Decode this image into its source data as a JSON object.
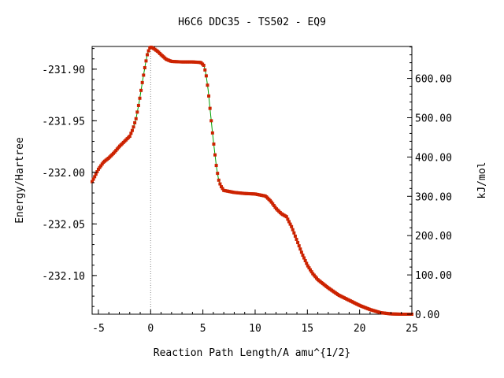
{
  "chart_data": {
    "type": "line",
    "title": "H6C6   DDC35 - TS502 - EQ9",
    "xlabel": "Reaction Path Length/A amu^{1/2}",
    "ylabel": "Energy/Hartree",
    "y2label": "kJ/mol",
    "xlim": [
      -5.6,
      25
    ],
    "ylim": [
      -232.1375,
      -231.878
    ],
    "y2lim": [
      0,
      681.3
    ],
    "x_ticks": [
      "-5",
      "0",
      "5",
      "10",
      "15",
      "20",
      "25"
    ],
    "y_ticks": [
      "-231.90",
      "-231.95",
      "-232.00",
      "-232.05",
      "-232.10"
    ],
    "y2_ticks": [
      "600.00",
      "500.00",
      "400.00",
      "300.00",
      "200.00",
      "100.00",
      "0.00"
    ],
    "ts_marker_x": 0,
    "series": [
      {
        "line_color": "#00a000",
        "marker_color": "#cc2200",
        "x": [
          -5.6,
          -5.0,
          -4.5,
          -4.0,
          -3.5,
          -3.0,
          -2.5,
          -2.0,
          -1.7,
          -1.4,
          -1.1,
          -0.8,
          -0.5,
          -0.3,
          -0.1,
          0.0,
          0.3,
          0.7,
          1.0,
          1.5,
          2.0,
          3.0,
          4.0,
          4.8,
          5.1,
          5.3,
          5.5,
          5.7,
          5.9,
          6.1,
          6.3,
          6.5,
          6.7,
          7.0,
          7.5,
          8.0,
          9.0,
          10.0,
          11.0,
          11.5,
          12.0,
          12.5,
          13.0,
          13.5,
          14.0,
          14.5,
          15.0,
          15.5,
          16.0,
          17.0,
          18.0,
          19.0,
          20.0,
          21.0,
          22.0,
          23.0,
          24.0,
          25.0
        ],
        "y": [
          -232.009,
          -231.997,
          -231.99,
          -231.986,
          -231.981,
          -231.975,
          -231.97,
          -231.965,
          -231.958,
          -231.948,
          -231.932,
          -231.913,
          -231.895,
          -231.885,
          -231.8795,
          -231.8785,
          -231.88,
          -231.883,
          -231.886,
          -231.8905,
          -231.8925,
          -231.893,
          -231.893,
          -231.8935,
          -231.8965,
          -231.905,
          -231.92,
          -231.94,
          -231.96,
          -231.978,
          -231.995,
          -232.007,
          -232.013,
          -232.0175,
          -232.0185,
          -232.0195,
          -232.0205,
          -232.021,
          -232.023,
          -232.028,
          -232.035,
          -232.04,
          -232.043,
          -232.053,
          -232.066,
          -232.079,
          -232.09,
          -232.098,
          -232.104,
          -232.112,
          -232.119,
          -232.124,
          -232.129,
          -232.133,
          -232.136,
          -232.1372,
          -232.1375,
          -232.1375
        ]
      }
    ]
  }
}
